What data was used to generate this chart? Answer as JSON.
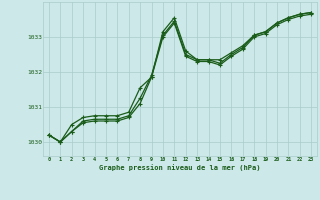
{
  "title": "Graphe pression niveau de la mer (hPa)",
  "background_color": "#cce8e8",
  "grid_color": "#aacccc",
  "line_color": "#1a5c1a",
  "marker_color": "#1a5c1a",
  "xlim": [
    -0.5,
    23.5
  ],
  "ylim": [
    1029.6,
    1034.0
  ],
  "yticks": [
    1030,
    1031,
    1032,
    1033
  ],
  "xticks": [
    0,
    1,
    2,
    3,
    4,
    5,
    6,
    7,
    8,
    9,
    10,
    11,
    12,
    13,
    14,
    15,
    16,
    17,
    18,
    19,
    20,
    21,
    22,
    23
  ],
  "series": [
    {
      "y": [
        1030.2,
        1030.0,
        1030.3,
        1030.6,
        1030.65,
        1030.65,
        1030.65,
        1030.75,
        1031.25,
        1031.9,
        1033.05,
        1033.45,
        1032.5,
        1032.35,
        1032.35,
        1032.25,
        1032.5,
        1032.7,
        1033.05,
        1033.15,
        1033.4,
        1033.55,
        1033.65,
        1033.7
      ],
      "marker": true,
      "lw": 0.9
    },
    {
      "y": [
        1030.2,
        1030.0,
        1030.5,
        1030.7,
        1030.75,
        1030.75,
        1030.75,
        1030.85,
        1031.55,
        1031.85,
        1033.15,
        1033.55,
        1032.6,
        1032.35,
        1032.35,
        1032.35,
        1032.55,
        1032.75,
        1033.05,
        1033.15,
        1033.4,
        1033.55,
        1033.65,
        1033.7
      ],
      "marker": true,
      "lw": 0.9
    },
    {
      "y": [
        1030.2,
        1030.0,
        1030.3,
        1030.55,
        1030.6,
        1030.6,
        1030.6,
        1030.7,
        1031.1,
        1031.85,
        1033.0,
        1033.4,
        1032.45,
        1032.3,
        1032.3,
        1032.2,
        1032.45,
        1032.65,
        1033.0,
        1033.1,
        1033.35,
        1033.5,
        1033.6,
        1033.65
      ],
      "marker": true,
      "lw": 0.9
    }
  ]
}
